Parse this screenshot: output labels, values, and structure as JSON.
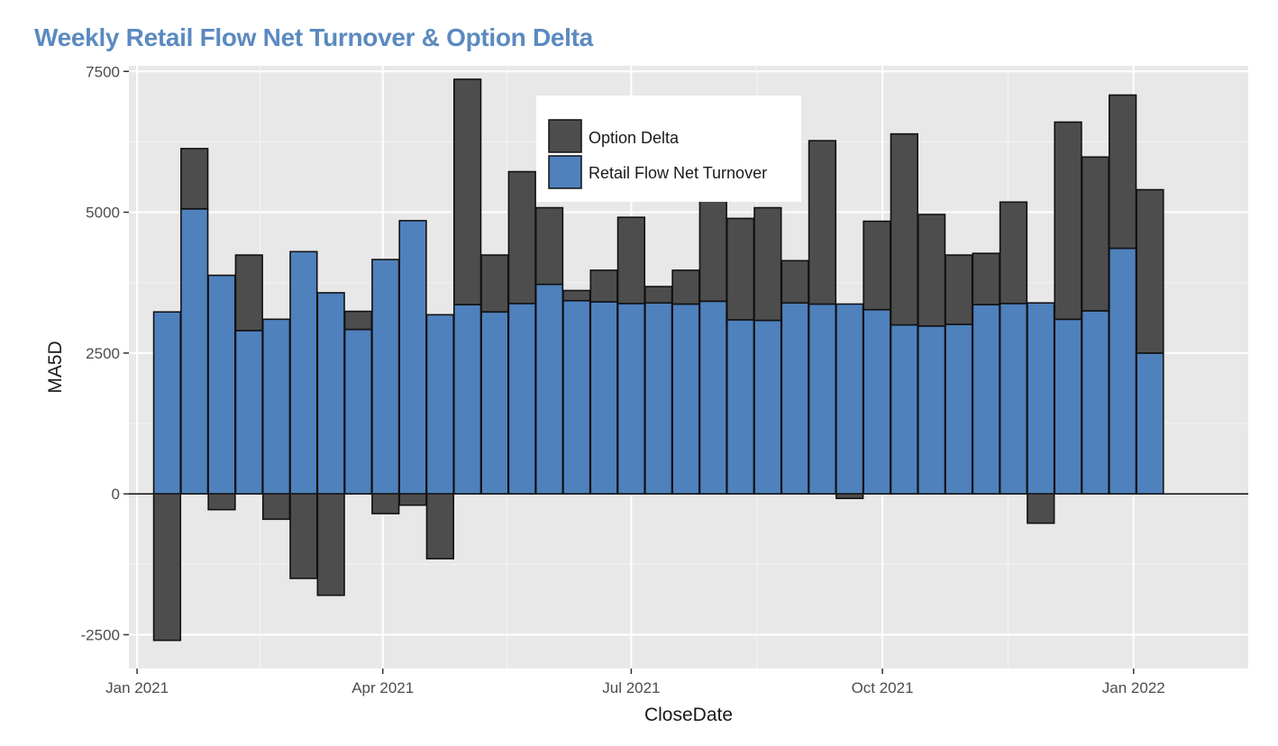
{
  "chart_data": {
    "type": "bar",
    "title": "Weekly Retail Flow Net Turnover & Option Delta",
    "xlabel": "CloseDate",
    "ylabel": "MA5D",
    "stacked": true,
    "ylim": [
      -3100,
      7600
    ],
    "xlim": [
      "2020-12-29",
      "2022-02-12"
    ],
    "x_ticks": [
      {
        "date": "2021-01-01",
        "label": "Jan 2021"
      },
      {
        "date": "2021-04-01",
        "label": "Apr 2021"
      },
      {
        "date": "2021-07-01",
        "label": "Jul 2021"
      },
      {
        "date": "2021-10-01",
        "label": "Oct 2021"
      },
      {
        "date": "2022-01-01",
        "label": "Jan 2022"
      }
    ],
    "y_ticks": [
      -2500,
      0,
      2500,
      5000,
      7500
    ],
    "grid": true,
    "legend_position": "top-center",
    "x": [
      "2021-01-12",
      "2021-01-22",
      "2021-02-01",
      "2021-02-11",
      "2021-02-21",
      "2021-03-03",
      "2021-03-13",
      "2021-03-23",
      "2021-04-02",
      "2021-04-12",
      "2021-04-22",
      "2021-05-02",
      "2021-05-12",
      "2021-05-22",
      "2021-06-01",
      "2021-06-11",
      "2021-06-21",
      "2021-07-01",
      "2021-07-11",
      "2021-07-21",
      "2021-07-31",
      "2021-08-10",
      "2021-08-20",
      "2021-08-30",
      "2021-09-09",
      "2021-09-19",
      "2021-09-29",
      "2021-10-09",
      "2021-10-19",
      "2021-10-29",
      "2021-11-08",
      "2021-11-18",
      "2021-11-28",
      "2021-12-08",
      "2021-12-18",
      "2021-12-28",
      "2022-01-07"
    ],
    "series": [
      {
        "name": "Retail Flow Net Turnover",
        "values": [
          3230,
          5060,
          3880,
          2900,
          3100,
          4300,
          3570,
          2920,
          4160,
          4850,
          3180,
          3360,
          3230,
          3380,
          3720,
          3430,
          3410,
          3380,
          3390,
          3370,
          3420,
          3090,
          3080,
          3390,
          3370,
          3370,
          3270,
          3000,
          2980,
          3010,
          3360,
          3380,
          3390,
          3100,
          3250,
          4360,
          2500
        ],
        "color": "#4f81bd"
      },
      {
        "name": "Option Delta",
        "values": [
          -2600,
          1070,
          -280,
          1340,
          -450,
          -1500,
          -1800,
          320,
          -350,
          -200,
          -1150,
          4000,
          1010,
          2340,
          1360,
          180,
          560,
          1530,
          290,
          600,
          2100,
          1800,
          2000,
          750,
          2900,
          -80,
          1570,
          3390,
          1980,
          1230,
          910,
          1800,
          -520,
          3500,
          2730,
          2720,
          2900
        ],
        "color": "#4d4d4d"
      }
    ]
  }
}
